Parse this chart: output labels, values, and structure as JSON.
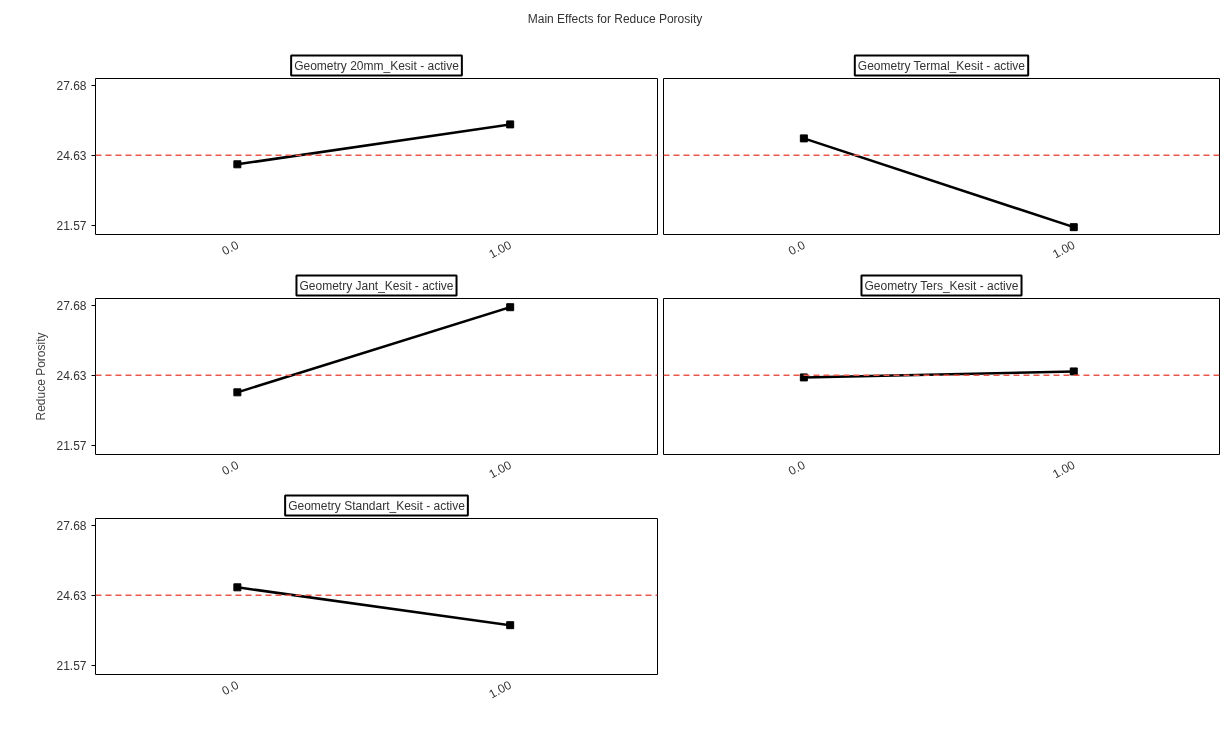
{
  "chart_data": [
    {
      "type": "line",
      "title": "Geometry 20mm_Kesit - active",
      "annotations": [
        "Main Effects for Reduce Porosity"
      ],
      "categories": [
        "0.0",
        "1.00"
      ],
      "values": [
        24.24,
        25.98
      ],
      "color": "#000000",
      "marker": "square",
      "line_style": "solid",
      "grid": false,
      "ylim": [
        21.18,
        27.98
      ],
      "yticks": [
        21.57,
        24.63,
        27.68
      ],
      "ref_lines": [
        {
          "axis": "y",
          "value": 24.63,
          "color": "#e8584a",
          "line_style": "dashed"
        }
      ]
    },
    {
      "type": "line",
      "title": "Geometry Termal_Kesit - active",
      "categories": [
        "0.0",
        "1.00"
      ],
      "values": [
        25.37,
        21.5
      ],
      "color": "#000000",
      "marker": "square",
      "line_style": "solid",
      "grid": false,
      "tick_labels": "x",
      "ylim": [
        21.18,
        27.98
      ],
      "yticks": [
        21.57,
        24.63,
        27.68
      ],
      "ref_lines": [
        {
          "axis": "y",
          "value": 24.63,
          "color": "#e8584a",
          "line_style": "dashed"
        }
      ]
    },
    {
      "type": "line",
      "title": "Geometry Jant_Kesit - active",
      "ylabel": "Reduce Porosity",
      "categories": [
        "0.0",
        "1.00"
      ],
      "values": [
        23.89,
        27.6
      ],
      "color": "#000000",
      "marker": "square",
      "line_style": "solid",
      "grid": false,
      "ylim": [
        21.18,
        27.98
      ],
      "yticks": [
        21.57,
        24.63,
        27.68
      ],
      "ref_lines": [
        {
          "axis": "y",
          "value": 24.63,
          "color": "#e8584a",
          "line_style": "dashed"
        }
      ]
    },
    {
      "type": "line",
      "title": "Geometry Ters_Kesit - active",
      "categories": [
        "0.0",
        "1.00"
      ],
      "values": [
        24.54,
        24.8
      ],
      "color": "#000000",
      "marker": "square",
      "line_style": "solid",
      "grid": false,
      "tick_labels": "x",
      "ylim": [
        21.18,
        27.98
      ],
      "yticks": [
        21.57,
        24.63,
        27.68
      ],
      "ref_lines": [
        {
          "axis": "y",
          "value": 24.63,
          "color": "#e8584a",
          "line_style": "dashed"
        }
      ]
    },
    {
      "type": "line",
      "title": "Geometry Standart_Kesit - active",
      "categories": [
        "0.0",
        "1.00"
      ],
      "values": [
        24.98,
        23.33
      ],
      "color": "#000000",
      "marker": "square",
      "line_style": "solid",
      "grid": false,
      "ylim": [
        21.18,
        27.98
      ],
      "yticks": [
        21.57,
        24.63,
        27.68
      ],
      "ref_lines": [
        {
          "axis": "y",
          "value": 24.63,
          "color": "#e8584a",
          "line_style": "dashed"
        }
      ]
    }
  ]
}
